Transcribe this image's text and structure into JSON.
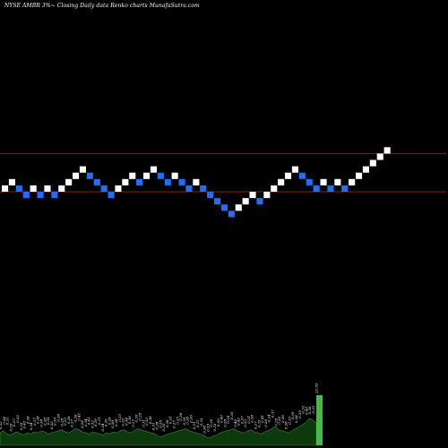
{
  "header": {
    "title": "NYSE AMBR 3%~  Closing Daily data  Renko  charts MunafaSutra.com"
  },
  "colors": {
    "background": "#000000",
    "up_brick": "#ffffff",
    "down_brick": "#1e6fff",
    "level_line": "#8b2500",
    "volume_fill": "#0d3a0d",
    "volume_stroke": "#2f8f2f",
    "volume_peak": "#3fbf3f"
  },
  "chart_data": {
    "type": "renko",
    "brick_size_percent": 3,
    "bricks": [
      {
        "dir": "up",
        "level": 1
      },
      {
        "dir": "up",
        "level": 2
      },
      {
        "dir": "down",
        "level": 1
      },
      {
        "dir": "down",
        "level": 0
      },
      {
        "dir": "up",
        "level": 1
      },
      {
        "dir": "down",
        "level": 0
      },
      {
        "dir": "up",
        "level": 1
      },
      {
        "dir": "down",
        "level": 0
      },
      {
        "dir": "up",
        "level": 1
      },
      {
        "dir": "up",
        "level": 2
      },
      {
        "dir": "up",
        "level": 3
      },
      {
        "dir": "up",
        "level": 4
      },
      {
        "dir": "down",
        "level": 3
      },
      {
        "dir": "down",
        "level": 2
      },
      {
        "dir": "down",
        "level": 1
      },
      {
        "dir": "down",
        "level": 0
      },
      {
        "dir": "up",
        "level": 1
      },
      {
        "dir": "up",
        "level": 2
      },
      {
        "dir": "up",
        "level": 3
      },
      {
        "dir": "down",
        "level": 2
      },
      {
        "dir": "up",
        "level": 3
      },
      {
        "dir": "up",
        "level": 4
      },
      {
        "dir": "down",
        "level": 3
      },
      {
        "dir": "down",
        "level": 2
      },
      {
        "dir": "up",
        "level": 3
      },
      {
        "dir": "down",
        "level": 2
      },
      {
        "dir": "down",
        "level": 1
      },
      {
        "dir": "up",
        "level": 2
      },
      {
        "dir": "down",
        "level": 1
      },
      {
        "dir": "down",
        "level": 0
      },
      {
        "dir": "down",
        "level": -1
      },
      {
        "dir": "down",
        "level": -2
      },
      {
        "dir": "down",
        "level": -3
      },
      {
        "dir": "up",
        "level": -2
      },
      {
        "dir": "up",
        "level": -1
      },
      {
        "dir": "up",
        "level": 0
      },
      {
        "dir": "down",
        "level": -1
      },
      {
        "dir": "up",
        "level": 0
      },
      {
        "dir": "up",
        "level": 1
      },
      {
        "dir": "up",
        "level": 2
      },
      {
        "dir": "up",
        "level": 3
      },
      {
        "dir": "up",
        "level": 4
      },
      {
        "dir": "down",
        "level": 3
      },
      {
        "dir": "down",
        "level": 2
      },
      {
        "dir": "down",
        "level": 1
      },
      {
        "dir": "up",
        "level": 2
      },
      {
        "dir": "down",
        "level": 1
      },
      {
        "dir": "up",
        "level": 2
      },
      {
        "dir": "down",
        "level": 1
      },
      {
        "dir": "up",
        "level": 2
      },
      {
        "dir": "up",
        "level": 3
      },
      {
        "dir": "up",
        "level": 4
      },
      {
        "dir": "up",
        "level": 5
      },
      {
        "dir": "up",
        "level": 6
      },
      {
        "dir": "up",
        "level": 7
      }
    ],
    "reference_levels": [
      {
        "name": "upper",
        "level": 7.5
      },
      {
        "name": "lower",
        "level": 1.5
      }
    ],
    "volume": [
      12,
      14,
      11,
      10,
      12,
      13,
      11,
      10,
      12,
      11,
      13,
      12,
      14,
      13,
      11,
      12,
      13,
      14,
      15,
      13,
      12,
      14,
      16,
      15,
      13,
      12,
      11,
      13,
      12,
      11,
      10,
      12,
      11,
      13,
      12,
      14,
      15,
      13,
      12,
      14,
      16,
      15,
      14,
      13,
      12,
      11,
      9,
      8,
      10,
      11,
      12,
      13,
      14,
      15,
      16,
      14,
      13,
      12,
      11,
      10,
      8,
      7,
      9,
      10,
      12,
      13,
      14,
      15,
      16,
      14,
      13,
      12,
      14,
      15,
      13,
      12,
      11,
      13,
      14,
      16,
      18,
      15,
      14,
      13,
      12,
      14,
      16,
      18,
      20,
      22,
      26,
      24,
      22,
      58
    ],
    "volume_labels": [
      "0.32",
      "0.36",
      "0.31",
      "0.39",
      "0.37",
      "0.32",
      "0.33",
      "0.42",
      "0.28",
      "0.34",
      "0.37",
      "0.38",
      "0.38",
      "0.28",
      "0.33",
      "0.33",
      "0.39",
      "0.36",
      "0.29",
      "0.25",
      "0.26",
      "0.27",
      "0.26",
      "0.41",
      "0.28",
      "0.34",
      "0.41",
      "0.32",
      "0.29",
      "0.31",
      "0.34",
      "0.26",
      "0.29",
      "0.38",
      "0.28",
      "0.35",
      "0.32",
      "0.34",
      "0.36",
      "0.27",
      "0.39",
      "0.29",
      "0.31",
      "0.33",
      "0.36",
      "0.31",
      "0.28",
      "0.35",
      "0.30",
      "0.26",
      "0.31",
      "0.27",
      "0.25",
      "0.36",
      "0.29",
      "0.38",
      "0.36",
      "0.31",
      "0.27",
      "0.33",
      "0.38",
      "0.29",
      "0.30",
      "0.33",
      "0.39",
      "0.40",
      "0.28",
      "0.34",
      "0.35",
      "0.40",
      "0.42",
      "0.37",
      "0.33",
      "0.31",
      "0.38",
      "0.27",
      "0.35",
      "0.41",
      "0.28",
      "0.34",
      "0.37",
      "0.25",
      "0.30",
      "0.36",
      "0.28",
      "0.33",
      "0.39",
      "0.28",
      "0.35",
      "0.32",
      "0.40",
      "0.36",
      "0.33",
      "22.93"
    ]
  }
}
